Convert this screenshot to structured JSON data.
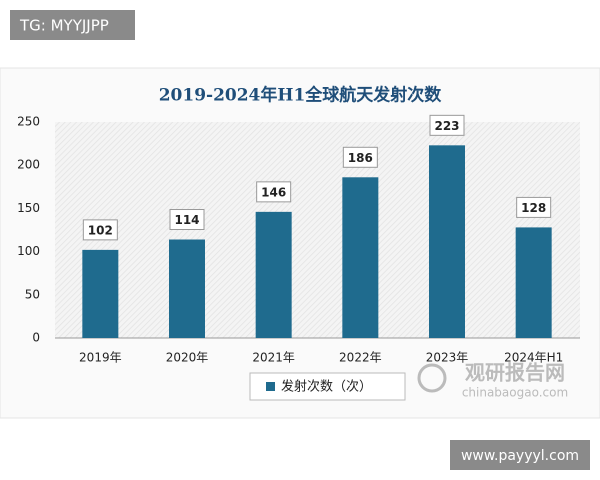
{
  "chart_data": {
    "type": "bar",
    "title": "2019-2024年H1全球航天发射次数",
    "categories": [
      "2019年",
      "2020年",
      "2021年",
      "2022年",
      "2023年",
      "2024年H1"
    ],
    "series": [
      {
        "name": "发射次数（次）",
        "color": "#1f6b8e",
        "values": [
          102,
          114,
          146,
          186,
          223,
          128
        ]
      }
    ],
    "ylim": [
      0,
      250
    ],
    "yticks": [
      0,
      50,
      100,
      150,
      200,
      250
    ],
    "grid": true,
    "annotations": [
      "TG: MYYJJPP",
      "观研报告网",
      "chinabaogao.com",
      "www.payyyl.com"
    ]
  }
}
